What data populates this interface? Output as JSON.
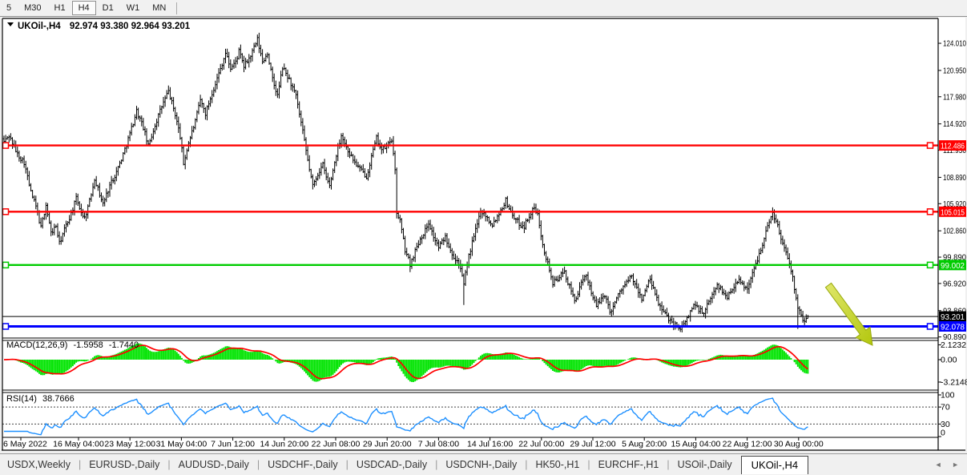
{
  "toolbar": {
    "timeframes": [
      {
        "label": "5",
        "active": false
      },
      {
        "label": "M30",
        "active": false
      },
      {
        "label": "H1",
        "active": false
      },
      {
        "label": "H4",
        "active": true
      },
      {
        "label": "D1",
        "active": false
      },
      {
        "label": "W1",
        "active": false
      },
      {
        "label": "MN",
        "active": false
      }
    ]
  },
  "chart": {
    "symbol_period": "UKOil-,H4",
    "ohlc": "92.974 93.380 92.964 93.201"
  },
  "price_axis": {
    "ticks": [
      {
        "label": "124.010",
        "value": 124.01
      },
      {
        "label": "120.950",
        "value": 120.95
      },
      {
        "label": "117.980",
        "value": 117.98
      },
      {
        "label": "114.920",
        "value": 114.92
      },
      {
        "label": "111.950",
        "value": 111.95
      },
      {
        "label": "108.890",
        "value": 108.89
      },
      {
        "label": "105.920",
        "value": 105.92
      },
      {
        "label": "102.860",
        "value": 102.86
      },
      {
        "label": "99.890",
        "value": 99.89
      },
      {
        "label": "96.920",
        "value": 96.92
      },
      {
        "label": "93.860",
        "value": 93.86
      },
      {
        "label": "90.890",
        "value": 90.89
      }
    ]
  },
  "lines": [
    {
      "name": "resistance-line-upper",
      "label": "112.486",
      "value": 112.486,
      "color": "#FF0000",
      "width": 2.4,
      "handles": true
    },
    {
      "name": "resistance-line-lower",
      "label": "105.015",
      "value": 105.015,
      "color": "#FF0000",
      "width": 2.4,
      "handles": true
    },
    {
      "name": "support-line-green",
      "label": "99.002",
      "value": 99.002,
      "color": "#00CC00",
      "width": 2.4,
      "handles": true
    },
    {
      "name": "bid-price-line",
      "label": "93.201",
      "value": 93.201,
      "color": "#000000",
      "width": 1,
      "handles": false
    },
    {
      "name": "support-line-blue",
      "label": "92.078",
      "value": 92.078,
      "color": "#0000FF",
      "width": 3,
      "handles": true
    }
  ],
  "macd": {
    "title": "MACD(12,26,9)",
    "value_main": "-1.5958",
    "value_signal": "-1.7440",
    "fast": 12,
    "slow": 26,
    "signal": 9,
    "axis_ticks": [
      {
        "label": "2.1232",
        "value": 2.1232
      },
      {
        "label": "0.00",
        "value": 0
      },
      {
        "label": "-3.2148",
        "value": -3.2148
      }
    ]
  },
  "rsi": {
    "title": "RSI(14)",
    "value": "38.7666",
    "period": 14,
    "levels": [
      70,
      30
    ],
    "axis_ticks": [
      {
        "label": "100",
        "value": 100
      },
      {
        "label": "70",
        "value": 70
      },
      {
        "label": "30",
        "value": 30
      },
      {
        "label": "0",
        "value": 0
      }
    ]
  },
  "time_axis": {
    "labels": [
      "6 May 2022",
      "16 May 04:00",
      "23 May 12:00",
      "31 May 04:00",
      "7 Jun 12:00",
      "14 Jun 20:00",
      "22 Jun 08:00",
      "29 Jun 20:00",
      "7 Jul 08:00",
      "14 Jul 16:00",
      "22 Jul 00:00",
      "29 Jul 12:00",
      "5 Aug 20:00",
      "15 Aug 04:00",
      "22 Aug 12:00",
      "30 Aug 00:00"
    ]
  },
  "tabs": {
    "items": [
      {
        "label": "USDX,Weekly",
        "active": false
      },
      {
        "label": "EURUSD-,Daily",
        "active": false
      },
      {
        "label": "AUDUSD-,Daily",
        "active": false
      },
      {
        "label": "USDCHF-,Daily",
        "active": false
      },
      {
        "label": "USDCAD-,Daily",
        "active": false
      },
      {
        "label": "USDCNH-,Daily",
        "active": false
      },
      {
        "label": "HK50-,H1",
        "active": false
      },
      {
        "label": "EURCHF-,H1",
        "active": false
      },
      {
        "label": "USOil-,Daily",
        "active": false
      },
      {
        "label": "UKOil-,H4",
        "active": true
      }
    ],
    "scroll_arrows": [
      "◄",
      "►"
    ]
  },
  "annotation": {
    "type": "arrow-down-right",
    "from": [
      1034,
      356
    ],
    "to": [
      1089,
      431
    ],
    "fill_light": "#e0e76a",
    "fill_dark": "#b3c70e",
    "stroke": "#98a90d"
  },
  "colors": {
    "bar": "#000000",
    "macd_hist": "#00E400",
    "macd_signal": "#FF0000",
    "rsi_line": "#1E90FF",
    "axis_text": "#000000",
    "panel_bg": "#FFFFFF"
  },
  "chart_data": {
    "type": "ohlc-bar",
    "symbol": "UKOil-",
    "timeframe": "H4",
    "current": {
      "open": 92.974,
      "high": 93.38,
      "low": 92.964,
      "close": 93.201
    },
    "bars_visible": 480,
    "price_range_shown": [
      88.8,
      125.3
    ],
    "price_path": [
      [
        0,
        112.9
      ],
      [
        3,
        113.6
      ],
      [
        8,
        111.5
      ],
      [
        12,
        110.6
      ],
      [
        16,
        107.2
      ],
      [
        19,
        105.6
      ],
      [
        22,
        103.2
      ],
      [
        25,
        105.8
      ],
      [
        28,
        102.6
      ],
      [
        31,
        103.4
      ],
      [
        33,
        101.4
      ],
      [
        36,
        103.0
      ],
      [
        40,
        104.8
      ],
      [
        43,
        106.5
      ],
      [
        46,
        105.0
      ],
      [
        48,
        104.3
      ],
      [
        51,
        106.2
      ],
      [
        54,
        108.8
      ],
      [
        57,
        107.0
      ],
      [
        59,
        105.9
      ],
      [
        63,
        108.0
      ],
      [
        67,
        109.5
      ],
      [
        71,
        111.5
      ],
      [
        75,
        113.8
      ],
      [
        79,
        116.4
      ],
      [
        83,
        114.5
      ],
      [
        86,
        112.4
      ],
      [
        90,
        114.8
      ],
      [
        94,
        116.9
      ],
      [
        98,
        118.6
      ],
      [
        102,
        116.0
      ],
      [
        105,
        113.5
      ],
      [
        107,
        110.4
      ],
      [
        110,
        112.8
      ],
      [
        114,
        115.2
      ],
      [
        117,
        117.6
      ],
      [
        120,
        116.1
      ],
      [
        124,
        118.4
      ],
      [
        128,
        120.6
      ],
      [
        132,
        122.9
      ],
      [
        135,
        121.2
      ],
      [
        138,
        121.9
      ],
      [
        140,
        123.1
      ],
      [
        143,
        121.4
      ],
      [
        147,
        122.6
      ],
      [
        151,
        124.4
      ],
      [
        154,
        121.9
      ],
      [
        157,
        122.9
      ],
      [
        160,
        119.9
      ],
      [
        163,
        118.1
      ],
      [
        166,
        121.3
      ],
      [
        170,
        119.9
      ],
      [
        174,
        118.0
      ],
      [
        178,
        114.0
      ],
      [
        181,
        110.8
      ],
      [
        184,
        107.9
      ],
      [
        187,
        109.3
      ],
      [
        190,
        110.3
      ],
      [
        192,
        108.9
      ],
      [
        194,
        107.9
      ],
      [
        198,
        111.5
      ],
      [
        201,
        113.7
      ],
      [
        204,
        112.3
      ],
      [
        207,
        111.2
      ],
      [
        210,
        110.3
      ],
      [
        213,
        109.6
      ],
      [
        216,
        109.0
      ],
      [
        219,
        111.2
      ],
      [
        222,
        113.3
      ],
      [
        225,
        112.0
      ],
      [
        228,
        112.4
      ],
      [
        231,
        113.2
      ],
      [
        233,
        109.5
      ],
      [
        234,
        105.0
      ],
      [
        236,
        104.0
      ],
      [
        239,
        100.7
      ],
      [
        242,
        99.1
      ],
      [
        245,
        100.6
      ],
      [
        248,
        102.0
      ],
      [
        251,
        102.9
      ],
      [
        253,
        103.8
      ],
      [
        256,
        102.2
      ],
      [
        259,
        101.0
      ],
      [
        261,
        101.6
      ],
      [
        263,
        102.2
      ],
      [
        266,
        100.8
      ],
      [
        269,
        99.6
      ],
      [
        271,
        99.3
      ],
      [
        274,
        96.7
      ],
      [
        276,
        99.2
      ],
      [
        279,
        101.5
      ],
      [
        282,
        103.6
      ],
      [
        284,
        105.2
      ],
      [
        287,
        104.6
      ],
      [
        289,
        104.0
      ],
      [
        291,
        103.6
      ],
      [
        294,
        104.5
      ],
      [
        297,
        105.6
      ],
      [
        299,
        106.3
      ],
      [
        302,
        105.0
      ],
      [
        305,
        104.1
      ],
      [
        308,
        103.5
      ],
      [
        310,
        103.4
      ],
      [
        313,
        104.6
      ],
      [
        316,
        105.4
      ],
      [
        318,
        104.6
      ],
      [
        320,
        102.5
      ],
      [
        322,
        100.6
      ],
      [
        325,
        98.5
      ],
      [
        327,
        96.9
      ],
      [
        330,
        97.5
      ],
      [
        334,
        98.2
      ],
      [
        337,
        96.5
      ],
      [
        340,
        95.0
      ],
      [
        344,
        96.8
      ],
      [
        347,
        97.9
      ],
      [
        350,
        96.0
      ],
      [
        353,
        94.3
      ],
      [
        356,
        95.2
      ],
      [
        358,
        95.7
      ],
      [
        361,
        93.7
      ],
      [
        364,
        94.8
      ],
      [
        368,
        96.4
      ],
      [
        371,
        97.0
      ],
      [
        374,
        97.7
      ],
      [
        377,
        96.3
      ],
      [
        380,
        95.2
      ],
      [
        383,
        96.5
      ],
      [
        385,
        97.4
      ],
      [
        388,
        95.6
      ],
      [
        392,
        93.9
      ],
      [
        396,
        93.0
      ],
      [
        399,
        92.4
      ],
      [
        402,
        92.0
      ],
      [
        404,
        91.9
      ],
      [
        408,
        93.3
      ],
      [
        411,
        94.6
      ],
      [
        414,
        94.0
      ],
      [
        417,
        93.5
      ],
      [
        421,
        95.2
      ],
      [
        425,
        96.9
      ],
      [
        428,
        96.0
      ],
      [
        431,
        95.4
      ],
      [
        434,
        96.4
      ],
      [
        437,
        97.3
      ],
      [
        440,
        96.8
      ],
      [
        443,
        96.4
      ],
      [
        446,
        98.0
      ],
      [
        449,
        99.7
      ],
      [
        452,
        101.5
      ],
      [
        455,
        103.3
      ],
      [
        458,
        105.0
      ],
      [
        461,
        103.4
      ],
      [
        463,
        101.9
      ],
      [
        466,
        100.6
      ],
      [
        468,
        99.4
      ],
      [
        470,
        97.5
      ],
      [
        473,
        94.4
      ],
      [
        475,
        93.2
      ],
      [
        476,
        92.6
      ],
      [
        478,
        93.0
      ],
      [
        479,
        93.2
      ]
    ],
    "spikes": [
      {
        "bar": 151,
        "high": 125.0
      },
      {
        "bar": 274,
        "low": 94.5
      },
      {
        "bar": 242,
        "low": 98.2
      },
      {
        "bar": 404,
        "low": 91.4
      },
      {
        "bar": 458,
        "high": 105.5
      },
      {
        "bar": 473,
        "low": 91.8
      }
    ]
  }
}
